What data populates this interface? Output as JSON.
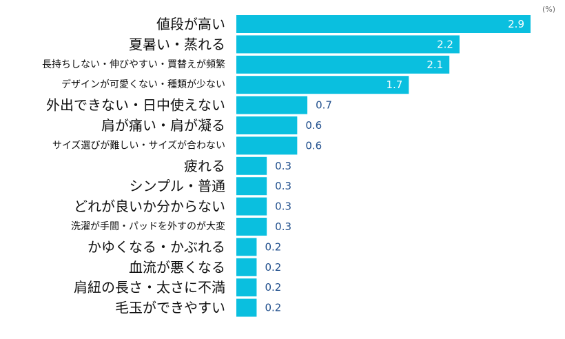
{
  "chart_data": {
    "type": "bar",
    "orientation": "horizontal",
    "unit_label": "(%)",
    "categories": [
      "値段が高い",
      "夏暑い・蒸れる",
      "長持ちしない・伸びやすい・買替えが頻繁",
      "デザインが可愛くない・種類が少ない",
      "外出できない・日中使えない",
      "肩が痛い・肩が凝る",
      "サイズ選びが難しい・サイズが合わない",
      "疲れる",
      "シンプル・普通",
      "どれが良いか分からない",
      "洗濯が手間・パッドを外すのが大変",
      "かゆくなる・かぶれる",
      "血流が悪くなる",
      "肩紐の長さ・太さに不満",
      "毛玉ができやすい"
    ],
    "values": [
      2.9,
      2.2,
      2.1,
      1.7,
      0.7,
      0.6,
      0.6,
      0.3,
      0.3,
      0.3,
      0.3,
      0.2,
      0.2,
      0.2,
      0.2
    ],
    "value_labels": [
      "2.9",
      "2.2",
      "2.1",
      "1.7",
      "0.7",
      "0.6",
      "0.6",
      "0.3",
      "0.3",
      "0.3",
      "0.3",
      "0.2",
      "0.2",
      "0.2",
      "0.2"
    ],
    "xlim": [
      0,
      2.9
    ],
    "bar_color": "#0abfdf",
    "label_color_inside": "#ffffff",
    "label_color_outside": "#1f4e8c"
  }
}
